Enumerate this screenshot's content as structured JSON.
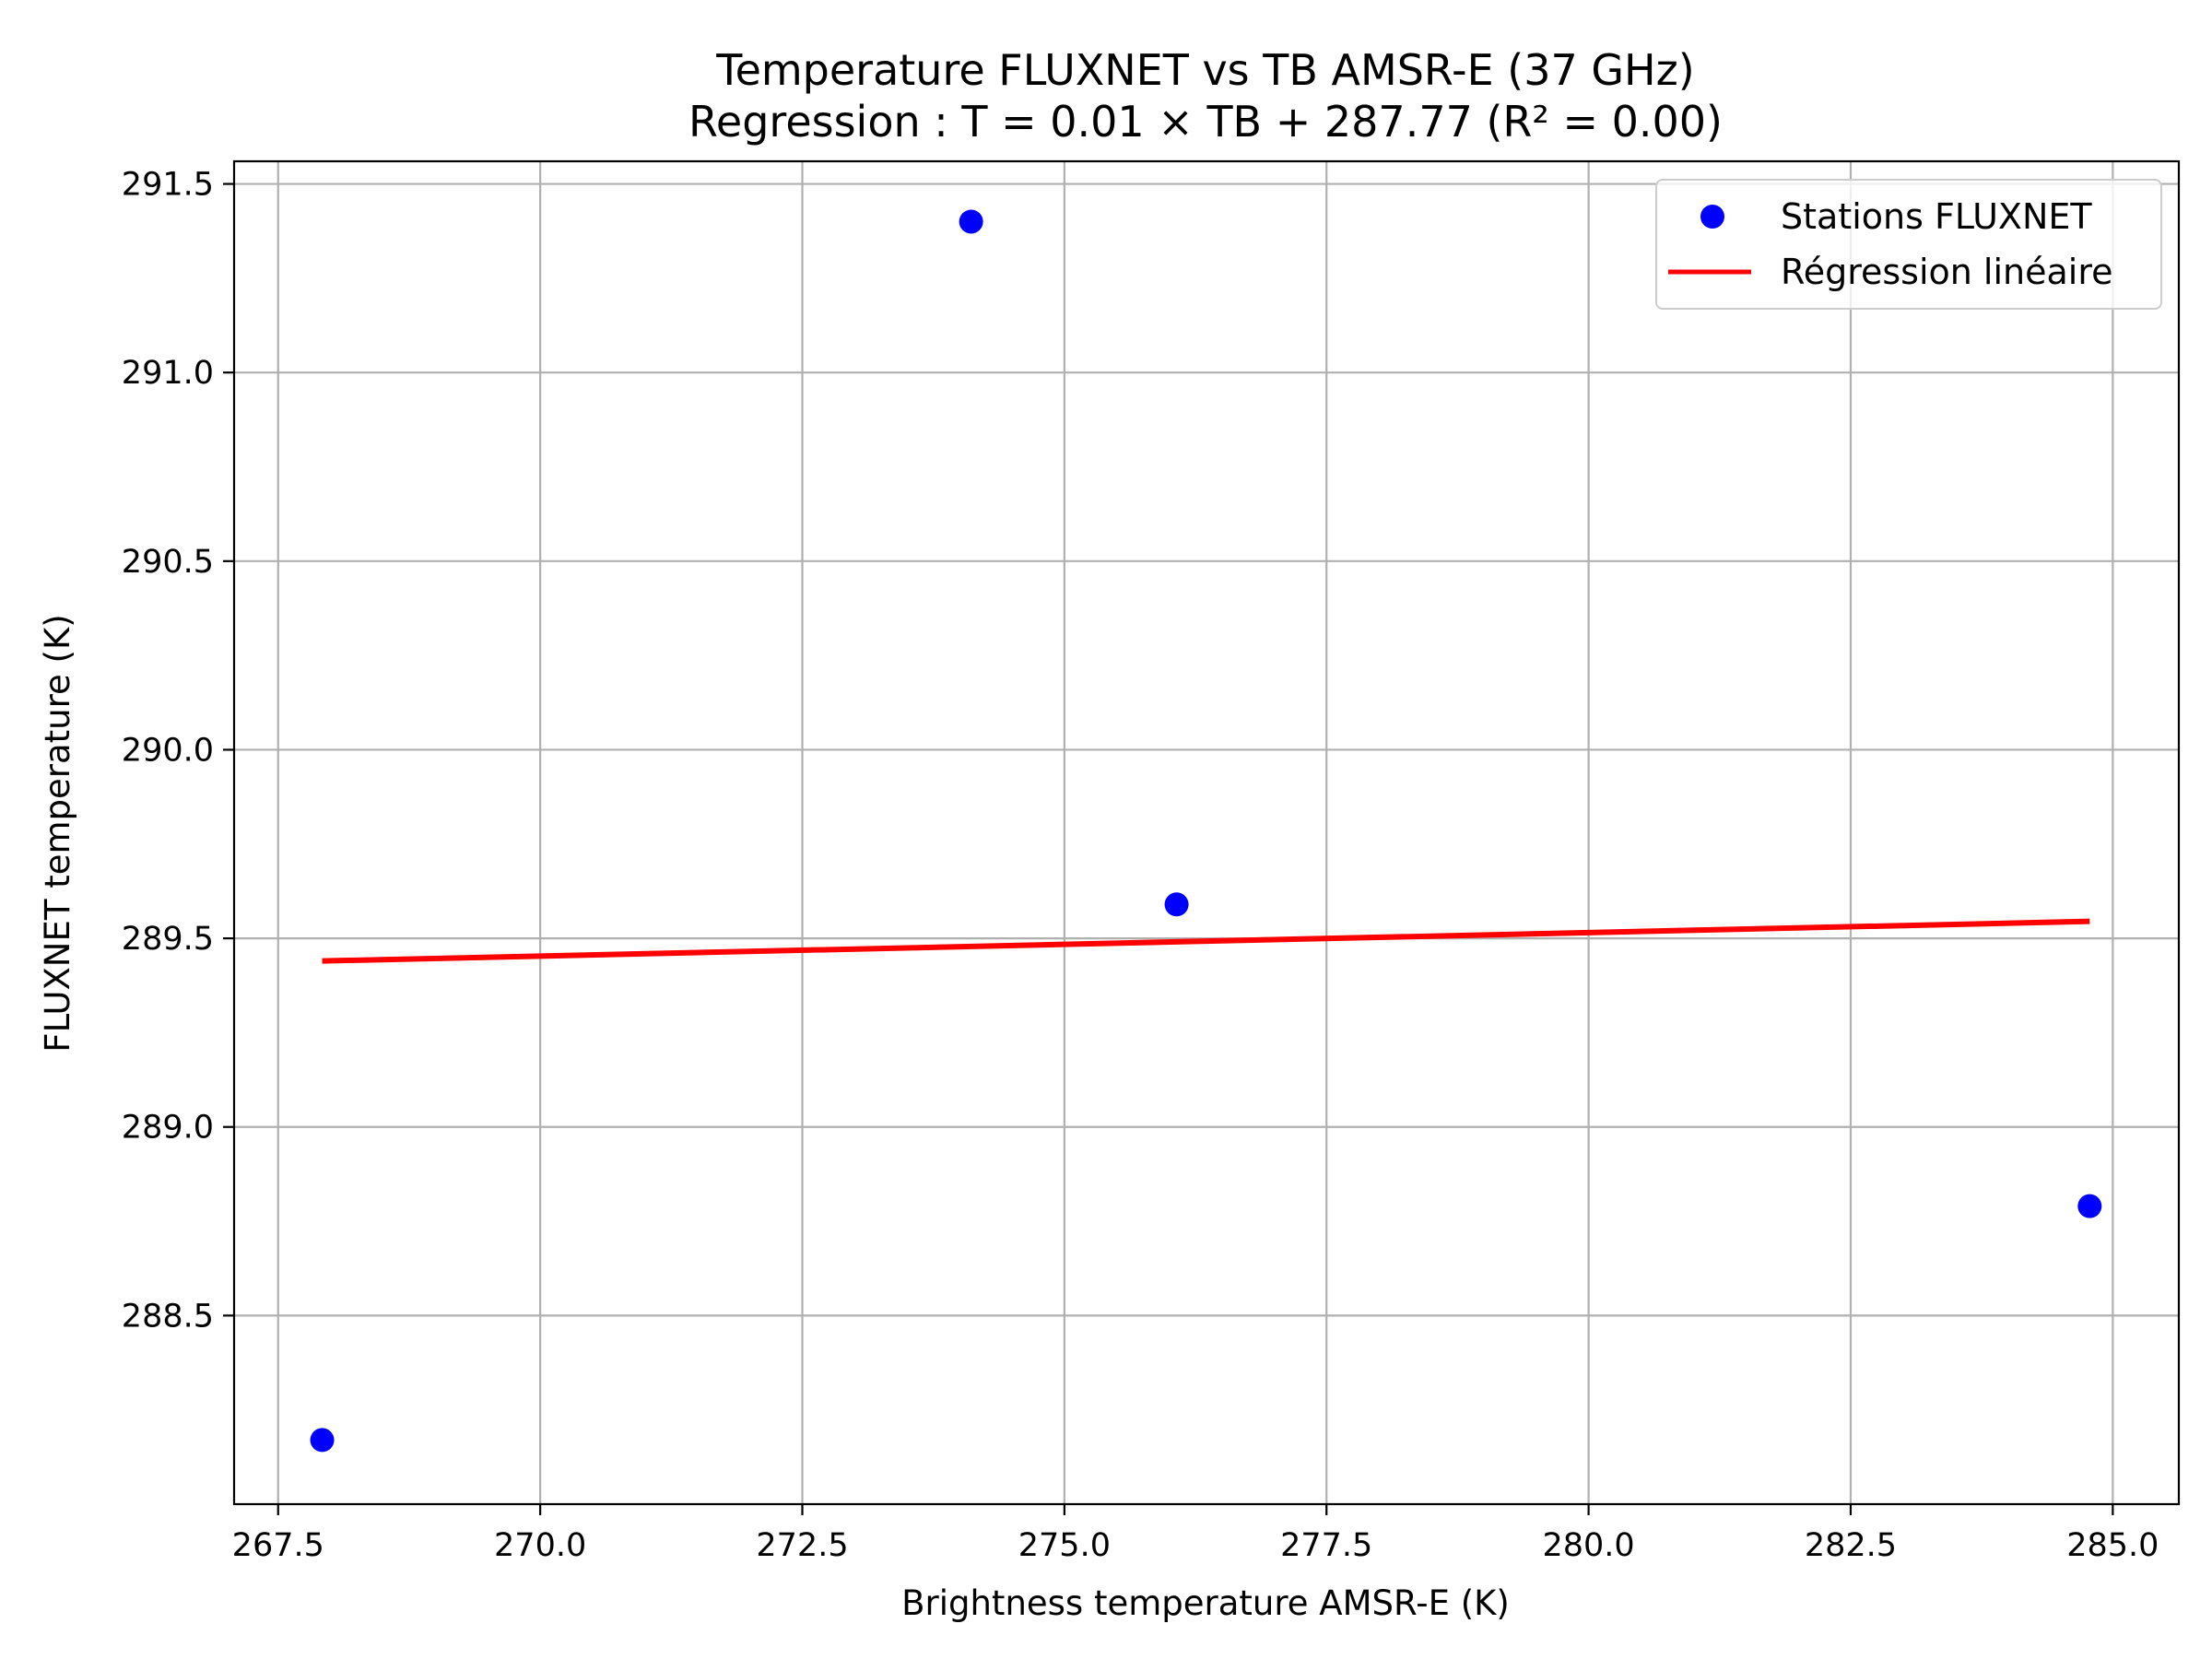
{
  "chart_data": {
    "type": "scatter",
    "title": "Temperature FLUXNET vs TB AMSR-E (37 GHz)",
    "subtitle": "Regression : T = 0.01 × TB + 287.77 (R² = 0.00)",
    "xlabel": "Brightness temperature AMSR-E (K)",
    "ylabel": "FLUXNET temperature (K)",
    "xlim": [
      267.08,
      285.63
    ],
    "ylim": [
      288.0,
      291.56
    ],
    "xticks": [
      267.5,
      270.0,
      272.5,
      275.0,
      277.5,
      280.0,
      282.5,
      285.0
    ],
    "xtick_labels": [
      "267.5",
      "270.0",
      "272.5",
      "275.0",
      "277.5",
      "280.0",
      "282.5",
      "285.0"
    ],
    "yticks": [
      288.5,
      289.0,
      289.5,
      290.0,
      290.5,
      291.0,
      291.5
    ],
    "ytick_labels": [
      "288.5",
      "289.0",
      "289.5",
      "290.0",
      "290.5",
      "291.0",
      "291.5"
    ],
    "grid": true,
    "legend_position": "top-right",
    "series": [
      {
        "name": "Stations FLUXNET",
        "type": "scatter",
        "color": "#0000ff",
        "x": [
          267.92,
          274.11,
          276.07,
          284.78
        ],
        "y": [
          288.17,
          291.4,
          289.59,
          288.79
        ]
      },
      {
        "name": "Régression linéaire",
        "type": "line",
        "color": "#ff0000",
        "x": [
          267.92,
          284.78
        ],
        "y": [
          289.44,
          289.545
        ]
      }
    ]
  }
}
